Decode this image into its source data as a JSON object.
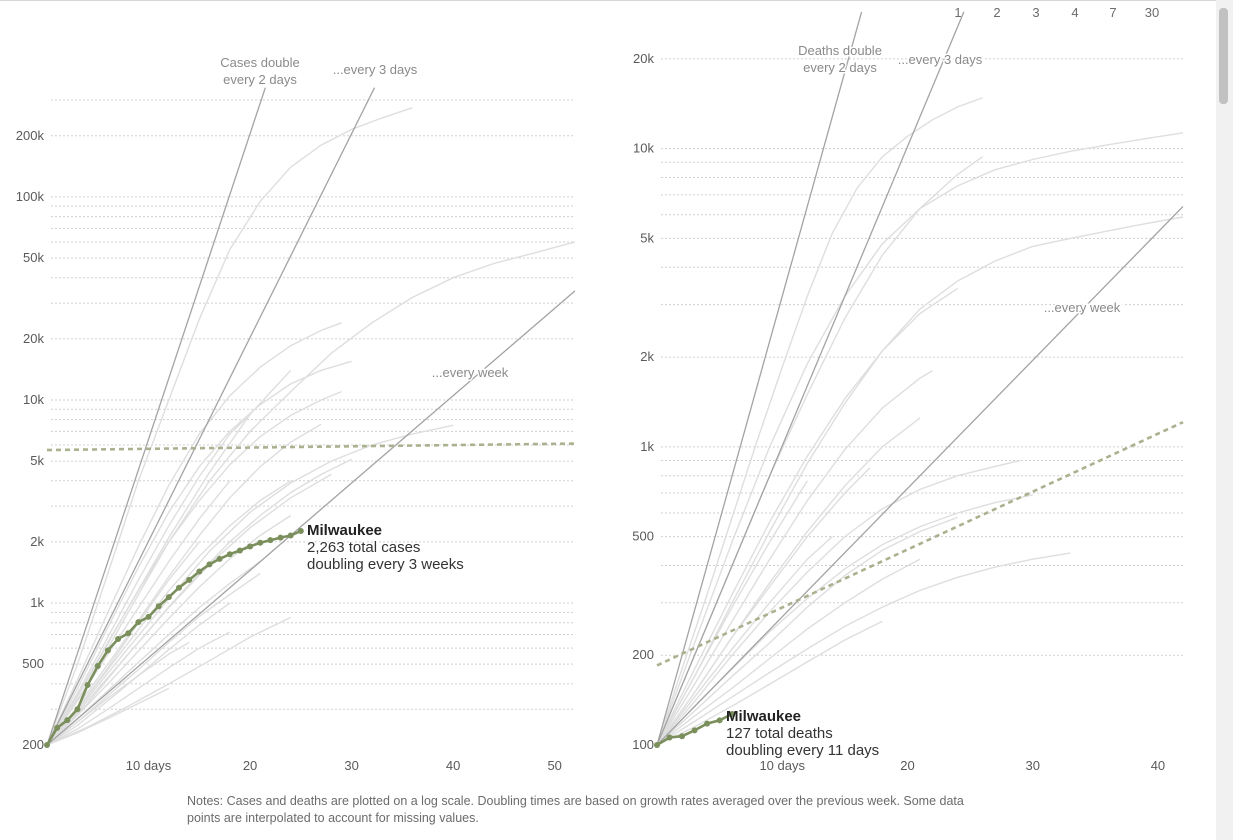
{
  "scale_selector": {
    "days": [
      "1",
      "2",
      "3",
      "4",
      "7",
      "30"
    ]
  },
  "notes": "Notes: Cases and deaths are plotted on a log scale. Doubling times are based on growth rates averaged over the previous week. Some data points are interpolated to account for missing values.",
  "chart_data": [
    {
      "type": "line",
      "y_scale": "log",
      "xlim": [
        0,
        52
      ],
      "ylim": [
        200,
        300000
      ],
      "x_ticks": [
        {
          "value": 10,
          "label": "10 days"
        },
        {
          "value": 20,
          "label": "20"
        },
        {
          "value": 30,
          "label": "30"
        },
        {
          "value": 40,
          "label": "40"
        },
        {
          "value": 50,
          "label": "50"
        }
      ],
      "y_ticks": [
        {
          "value": 200,
          "label": "200"
        },
        {
          "value": 500,
          "label": "500"
        },
        {
          "value": 1000,
          "label": "1k"
        },
        {
          "value": 2000,
          "label": "2k"
        },
        {
          "value": 5000,
          "label": "5k"
        },
        {
          "value": 10000,
          "label": "10k"
        },
        {
          "value": 20000,
          "label": "20k"
        },
        {
          "value": 50000,
          "label": "50k"
        },
        {
          "value": 100000,
          "label": "100k"
        },
        {
          "value": 200000,
          "label": "200k"
        }
      ],
      "reference_lines": [
        {
          "doubling_days": 2,
          "label_lines": [
            "Cases double",
            "every 2 days"
          ]
        },
        {
          "doubling_days": 3,
          "label_lines": [
            "...every 3 days"
          ]
        },
        {
          "doubling_days": 7,
          "label_lines": [
            "...every week"
          ]
        }
      ],
      "highlight": {
        "name": "Milwaukee",
        "label_lines": [
          "2,263 total cases",
          "doubling every 3 weeks"
        ],
        "x": [
          0,
          1,
          2,
          3,
          4,
          5,
          6,
          7,
          8,
          9,
          10,
          11,
          12,
          13,
          14,
          15,
          16,
          17,
          18,
          19,
          20,
          21,
          22,
          23,
          24,
          25
        ],
        "values": [
          200,
          243,
          265,
          300,
          395,
          490,
          585,
          665,
          710,
          805,
          855,
          965,
          1070,
          1190,
          1300,
          1430,
          1550,
          1650,
          1740,
          1815,
          1900,
          1980,
          2040,
          2100,
          2150,
          2263
        ],
        "trend_end": {
          "x": 52,
          "value": 6100
        }
      },
      "background_lines": [
        {
          "x": [
            0,
            3,
            6,
            9,
            12,
            15,
            18,
            21,
            24,
            27,
            30,
            33,
            36
          ],
          "values": [
            200,
            500,
            1400,
            4000,
            10000,
            25000,
            55000,
            95000,
            140000,
            180000,
            215000,
            245000,
            275000
          ]
        },
        {
          "x": [
            0,
            4,
            8,
            12,
            16,
            20,
            24,
            28,
            32,
            36,
            40,
            44,
            48,
            52
          ],
          "values": [
            200,
            400,
            900,
            2000,
            4000,
            7000,
            11000,
            17000,
            24000,
            32000,
            40000,
            47000,
            53000,
            60000
          ]
        },
        {
          "x": [
            0,
            3,
            6,
            9,
            12,
            15,
            18,
            21,
            24,
            27,
            29
          ],
          "values": [
            200,
            420,
            900,
            1900,
            3800,
            6800,
            10500,
            14500,
            18500,
            22000,
            24000
          ]
        },
        {
          "x": [
            0,
            3,
            6,
            9,
            12,
            15,
            18,
            21,
            24,
            27,
            30
          ],
          "values": [
            200,
            380,
            760,
            1500,
            2800,
            4700,
            7000,
            9500,
            12000,
            14000,
            15500
          ]
        },
        {
          "x": [
            0,
            4,
            8,
            12,
            16,
            20,
            24,
            28,
            32,
            36,
            40
          ],
          "values": [
            200,
            340,
            600,
            1050,
            1800,
            2800,
            3900,
            5000,
            6000,
            6800,
            7500
          ]
        },
        {
          "x": [
            0,
            3,
            6,
            9,
            12,
            15,
            18,
            21,
            24,
            27,
            29
          ],
          "values": [
            200,
            350,
            640,
            1150,
            2000,
            3200,
            4800,
            6600,
            8400,
            10000,
            11000
          ]
        },
        {
          "x": [
            0,
            4,
            8,
            12,
            16,
            20,
            24,
            28
          ],
          "values": [
            200,
            320,
            560,
            950,
            1550,
            2350,
            3300,
            4300
          ]
        },
        {
          "x": [
            0,
            3,
            6,
            9,
            12,
            15,
            18,
            21,
            24
          ],
          "values": [
            200,
            300,
            470,
            740,
            1150,
            1700,
            2400,
            3200,
            4000
          ]
        },
        {
          "x": [
            0,
            3,
            6,
            9,
            12,
            15,
            18,
            21,
            24
          ],
          "values": [
            200,
            280,
            400,
            580,
            840,
            1200,
            1650,
            2150,
            2700
          ]
        },
        {
          "x": [
            0,
            3,
            6,
            9,
            12,
            15,
            18,
            21
          ],
          "values": [
            200,
            260,
            350,
            470,
            640,
            860,
            1100,
            1400
          ]
        },
        {
          "x": [
            0,
            4,
            8,
            12,
            16,
            20,
            24
          ],
          "values": [
            200,
            245,
            310,
            400,
            520,
            680,
            850
          ]
        },
        {
          "x": [
            0,
            3,
            6,
            9,
            12,
            15,
            18
          ],
          "values": [
            200,
            240,
            300,
            380,
            480,
            600,
            720
          ]
        },
        {
          "x": [
            0,
            3,
            6,
            9,
            12,
            15
          ],
          "values": [
            200,
            300,
            480,
            800,
            1300,
            2000
          ]
        },
        {
          "x": [
            0,
            3,
            6,
            9,
            12,
            15,
            18
          ],
          "values": [
            200,
            330,
            560,
            950,
            1600,
            2600,
            4000
          ]
        },
        {
          "x": [
            0,
            3,
            6,
            9,
            12,
            15,
            18,
            20
          ],
          "values": [
            200,
            360,
            680,
            1300,
            2400,
            4200,
            6800,
            8500
          ]
        },
        {
          "x": [
            0,
            3,
            6,
            9,
            12,
            14
          ],
          "values": [
            200,
            260,
            340,
            440,
            560,
            640
          ]
        },
        {
          "x": [
            0,
            3,
            6,
            9,
            12
          ],
          "values": [
            200,
            230,
            270,
            320,
            380
          ]
        },
        {
          "x": [
            0,
            3,
            6,
            9,
            12,
            15,
            18,
            21,
            24,
            27
          ],
          "values": [
            200,
            310,
            500,
            820,
            1350,
            2150,
            3300,
            4700,
            6200,
            7600
          ]
        },
        {
          "x": [
            0,
            3,
            6,
            9,
            12,
            15,
            18,
            21,
            24,
            27,
            30
          ],
          "values": [
            200,
            290,
            430,
            640,
            960,
            1400,
            2000,
            2700,
            3500,
            4300,
            5100
          ]
        },
        {
          "x": [
            0,
            4,
            8,
            12,
            16,
            20,
            24
          ],
          "values": [
            200,
            420,
            950,
            2100,
            4400,
            8500,
            14000
          ]
        },
        {
          "x": [
            0,
            3,
            6,
            9,
            12,
            15,
            18,
            21
          ],
          "values": [
            200,
            270,
            370,
            510,
            700,
            950,
            1250,
            1600
          ]
        },
        {
          "x": [
            0,
            3,
            6,
            9,
            12,
            15,
            18
          ],
          "values": [
            200,
            250,
            330,
            440,
            590,
            780,
            1000
          ]
        }
      ]
    },
    {
      "type": "line",
      "y_scale": "log",
      "xlim": [
        0,
        42
      ],
      "ylim": [
        100,
        25000
      ],
      "x_ticks": [
        {
          "value": 10,
          "label": "10 days"
        },
        {
          "value": 20,
          "label": "20"
        },
        {
          "value": 30,
          "label": "30"
        },
        {
          "value": 40,
          "label": "40"
        }
      ],
      "y_ticks": [
        {
          "value": 100,
          "label": "100"
        },
        {
          "value": 200,
          "label": "200"
        },
        {
          "value": 500,
          "label": "500"
        },
        {
          "value": 1000,
          "label": "1k"
        },
        {
          "value": 2000,
          "label": "2k"
        },
        {
          "value": 5000,
          "label": "5k"
        },
        {
          "value": 10000,
          "label": "10k"
        },
        {
          "value": 20000,
          "label": "20k"
        }
      ],
      "reference_lines": [
        {
          "doubling_days": 2,
          "label_lines": [
            "Deaths double",
            "every 2 days"
          ]
        },
        {
          "doubling_days": 3,
          "label_lines": [
            "...every 3 days"
          ]
        },
        {
          "doubling_days": 7,
          "label_lines": [
            "...every week"
          ]
        }
      ],
      "highlight": {
        "name": "Milwaukee",
        "label_lines": [
          "127 total deaths",
          "doubling every 11 days"
        ],
        "x": [
          0,
          1,
          2,
          3,
          4,
          5,
          6
        ],
        "values": [
          100,
          106,
          107,
          112,
          118,
          121,
          127
        ],
        "trend_end": {
          "x": 42,
          "value": 1210
        }
      },
      "background_lines": [
        {
          "x": [
            0,
            3,
            6,
            9,
            12,
            15,
            18,
            21,
            24,
            27,
            30,
            33,
            36,
            39,
            42
          ],
          "values": [
            100,
            220,
            480,
            1000,
            1900,
            3200,
            4800,
            6300,
            7500,
            8500,
            9200,
            9800,
            10300,
            10800,
            11300
          ]
        },
        {
          "x": [
            0,
            2,
            4,
            6,
            8,
            10,
            12,
            14,
            16,
            18,
            20,
            22,
            24,
            26
          ],
          "values": [
            100,
            180,
            320,
            580,
            1050,
            1850,
            3200,
            5200,
            7400,
            9400,
            11000,
            12500,
            13800,
            14800
          ]
        },
        {
          "x": [
            0,
            3,
            6,
            9,
            12,
            15,
            18,
            21,
            24,
            27,
            30,
            33,
            36,
            39,
            42
          ],
          "values": [
            100,
            170,
            300,
            520,
            880,
            1400,
            2100,
            2900,
            3600,
            4200,
            4700,
            5000,
            5300,
            5600,
            5900
          ]
        },
        {
          "x": [
            0,
            3,
            6,
            9,
            12,
            15,
            18,
            21,
            24,
            26
          ],
          "values": [
            100,
            200,
            400,
            800,
            1500,
            2700,
            4400,
            6300,
            8200,
            9400
          ]
        },
        {
          "x": [
            0,
            3,
            6,
            9,
            12,
            15,
            18,
            21,
            24
          ],
          "values": [
            100,
            180,
            320,
            560,
            930,
            1450,
            2100,
            2800,
            3400
          ]
        },
        {
          "x": [
            0,
            3,
            6,
            9,
            12,
            15,
            18,
            21,
            22
          ],
          "values": [
            100,
            160,
            260,
            420,
            660,
            980,
            1350,
            1700,
            1800
          ]
        },
        {
          "x": [
            0,
            3,
            6,
            9,
            12,
            15,
            18,
            21
          ],
          "values": [
            100,
            150,
            230,
            350,
            520,
            740,
            1000,
            1250
          ]
        },
        {
          "x": [
            0,
            3,
            6,
            9,
            12,
            15,
            18,
            21,
            24,
            27,
            29
          ],
          "values": [
            100,
            140,
            200,
            280,
            380,
            500,
            620,
            720,
            800,
            860,
            900
          ]
        },
        {
          "x": [
            0,
            3,
            6,
            9,
            12,
            15,
            18,
            21,
            24
          ],
          "values": [
            100,
            130,
            170,
            220,
            290,
            370,
            450,
            520,
            580
          ]
        },
        {
          "x": [
            0,
            3,
            6,
            9,
            12,
            15,
            18,
            21
          ],
          "values": [
            100,
            125,
            155,
            195,
            245,
            300,
            360,
            420
          ]
        },
        {
          "x": [
            0,
            3,
            6,
            9,
            12,
            15,
            18
          ],
          "values": [
            100,
            115,
            135,
            160,
            190,
            225,
            260
          ]
        },
        {
          "x": [
            0,
            3,
            6,
            9,
            12
          ],
          "values": [
            100,
            170,
            290,
            480,
            770
          ]
        },
        {
          "x": [
            0,
            3,
            6,
            9,
            12,
            14
          ],
          "values": [
            100,
            145,
            210,
            300,
            420,
            500
          ]
        },
        {
          "x": [
            0,
            3,
            6,
            9,
            12,
            15,
            18,
            21,
            24,
            27,
            30
          ],
          "values": [
            100,
            135,
            180,
            240,
            310,
            390,
            470,
            540,
            600,
            650,
            690
          ]
        },
        {
          "x": [
            0,
            3,
            6,
            9,
            12,
            15,
            18,
            21,
            24,
            27,
            30,
            33
          ],
          "values": [
            100,
            120,
            145,
            175,
            210,
            250,
            290,
            330,
            365,
            395,
            420,
            440
          ]
        },
        {
          "x": [
            0,
            3,
            6,
            9,
            12,
            15,
            17
          ],
          "values": [
            100,
            150,
            230,
            340,
            500,
            700,
            850
          ]
        }
      ]
    }
  ]
}
